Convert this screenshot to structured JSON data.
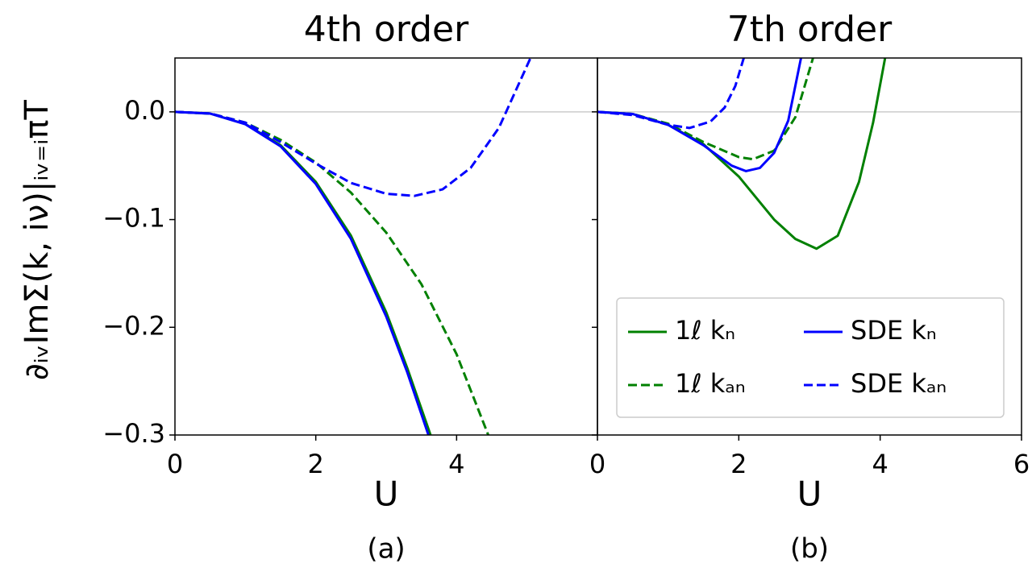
{
  "chart_data": [
    {
      "type": "line",
      "title": "4th order",
      "xlabel": "U",
      "caption": "(a)",
      "ylabel": "∂ᵢᵥImΣ(k, iν)|ᵢᵥ₌ᵢπT",
      "xlim": [
        0,
        6
      ],
      "xticks": [
        0,
        2,
        4
      ],
      "ylim": [
        -0.3,
        0.05
      ],
      "yticks": [
        {
          "value": 0,
          "label": "0.0"
        },
        {
          "value": -0.1,
          "label": "−0.1"
        },
        {
          "value": -0.2,
          "label": "−0.2"
        },
        {
          "value": -0.3,
          "label": "−0.3"
        }
      ],
      "ytick_labels": true,
      "hline": 0,
      "series": [
        {
          "name": "1ℓ kₙ",
          "color": "#008000",
          "dash": false,
          "x": [
            0,
            0.5,
            1,
            1.5,
            2,
            2.5,
            3,
            3.3,
            3.63
          ],
          "values": [
            0,
            -0.0016,
            -0.0113,
            -0.031,
            -0.065,
            -0.115,
            -0.186,
            -0.238,
            -0.3
          ]
        },
        {
          "name": "1ℓ kₐₙ",
          "color": "#008000",
          "dash": true,
          "x": [
            0,
            0.5,
            1,
            1.5,
            2,
            2.5,
            3,
            3.5,
            4,
            4.45
          ],
          "values": [
            0,
            -0.0015,
            -0.01,
            -0.026,
            -0.047,
            -0.075,
            -0.112,
            -0.16,
            -0.225,
            -0.3
          ]
        },
        {
          "name": "SDE kₙ",
          "color": "#0000ff",
          "dash": false,
          "x": [
            0,
            0.5,
            1,
            1.5,
            2,
            2.5,
            3,
            3.3,
            3.6
          ],
          "values": [
            0,
            -0.0016,
            -0.0115,
            -0.032,
            -0.067,
            -0.118,
            -0.19,
            -0.242,
            -0.3
          ]
        },
        {
          "name": "SDE kₐₙ",
          "color": "#0000ff",
          "dash": true,
          "x": [
            0,
            0.5,
            1,
            1.5,
            2,
            2.5,
            3,
            3.4,
            3.8,
            4.2,
            4.6,
            5.05
          ],
          "values": [
            0,
            -0.0015,
            -0.01,
            -0.028,
            -0.048,
            -0.066,
            -0.076,
            -0.078,
            -0.072,
            -0.052,
            -0.015,
            0.05
          ]
        }
      ]
    },
    {
      "type": "line",
      "title": "7th order",
      "xlabel": "U",
      "caption": "(b)",
      "xlim": [
        0,
        6
      ],
      "xticks": [
        0,
        2,
        4,
        6
      ],
      "ylim": [
        -0.3,
        0.05
      ],
      "yticks": [
        0,
        -0.1,
        -0.2,
        -0.3
      ],
      "ytick_labels": false,
      "hline": 0,
      "legend": "lower right",
      "legend_columns": 2,
      "series": [
        {
          "name": "1ℓ kₙ",
          "color": "#008000",
          "dash": false,
          "x": [
            0,
            0.5,
            1,
            1.5,
            2,
            2.5,
            2.8,
            3.1,
            3.4,
            3.7,
            3.9,
            4.07
          ],
          "values": [
            0,
            -0.002,
            -0.012,
            -0.03,
            -0.06,
            -0.1,
            -0.118,
            -0.127,
            -0.115,
            -0.065,
            -0.01,
            0.05
          ]
        },
        {
          "name": "1ℓ kₐₙ",
          "color": "#008000",
          "dash": true,
          "x": [
            0,
            0.5,
            1,
            1.5,
            2,
            2.2,
            2.5,
            2.8,
            3.05
          ],
          "values": [
            0,
            -0.002,
            -0.011,
            -0.028,
            -0.042,
            -0.044,
            -0.036,
            -0.005,
            0.05
          ]
        },
        {
          "name": "SDE kₙ",
          "color": "#0000ff",
          "dash": false,
          "x": [
            0,
            0.5,
            1,
            1.5,
            1.9,
            2.1,
            2.3,
            2.5,
            2.7,
            2.88
          ],
          "values": [
            0,
            -0.002,
            -0.012,
            -0.031,
            -0.05,
            -0.055,
            -0.052,
            -0.038,
            -0.008,
            0.05
          ]
        },
        {
          "name": "SDE kₐₙ",
          "color": "#0000ff",
          "dash": true,
          "x": [
            0,
            0.5,
            1,
            1.3,
            1.6,
            1.8,
            1.95,
            2.07
          ],
          "values": [
            0,
            -0.003,
            -0.012,
            -0.015,
            -0.009,
            0.004,
            0.024,
            0.05
          ]
        }
      ]
    }
  ]
}
